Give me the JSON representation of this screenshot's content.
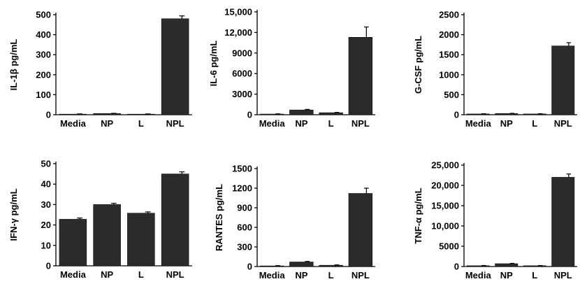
{
  "colors": {
    "bar": "#2b2b2b",
    "axis": "#000000",
    "background": "#ffffff"
  },
  "chart_data": [
    {
      "type": "bar",
      "ylabel": "IL-1β pg/mL",
      "categories": [
        "Media",
        "NP",
        "L",
        "NPL"
      ],
      "values": [
        3,
        6,
        3,
        480
      ],
      "errors": [
        1,
        1,
        1,
        14
      ],
      "ylim": [
        0,
        500
      ],
      "yticks": [
        0,
        100,
        200,
        300,
        400,
        500
      ],
      "ytick_labels": [
        "0",
        "100",
        "200",
        "300",
        "400",
        "500"
      ]
    },
    {
      "type": "bar",
      "ylabel": "IL-6 pg/mL",
      "categories": [
        "Media",
        "NP",
        "L",
        "NPL"
      ],
      "values": [
        100,
        700,
        300,
        11300
      ],
      "errors": [
        30,
        80,
        40,
        1500
      ],
      "ylim": [
        0,
        15000
      ],
      "yticks": [
        0,
        3000,
        6000,
        9000,
        12000,
        15000
      ],
      "ytick_labels": [
        "0",
        "3000",
        "6000",
        "9000",
        "12,000",
        "15,000"
      ]
    },
    {
      "type": "bar",
      "ylabel": "G-CSF pg/mL",
      "categories": [
        "Media",
        "NP",
        "L",
        "NPL"
      ],
      "values": [
        20,
        30,
        20,
        1720
      ],
      "errors": [
        5,
        5,
        5,
        80
      ],
      "ylim": [
        0,
        2500
      ],
      "yticks": [
        0,
        500,
        1000,
        1500,
        2000,
        2500
      ],
      "ytick_labels": [
        "0",
        "500",
        "1000",
        "1500",
        "2000",
        "2500"
      ]
    },
    {
      "type": "bar",
      "ylabel": "IFN-γ pg/mL",
      "categories": [
        "Media",
        "NP",
        "L",
        "NPL"
      ],
      "values": [
        22.8,
        30,
        25.8,
        45
      ],
      "errors": [
        0.6,
        0.6,
        0.6,
        1
      ],
      "ylim": [
        0,
        50
      ],
      "yticks": [
        0,
        10,
        20,
        30,
        40,
        50
      ],
      "ytick_labels": [
        "0",
        "10",
        "20",
        "30",
        "40",
        "50"
      ]
    },
    {
      "type": "bar",
      "ylabel": "RANTES pg/mL",
      "categories": [
        "Media",
        "NP",
        "L",
        "NPL"
      ],
      "values": [
        10,
        70,
        20,
        1120
      ],
      "errors": [
        4,
        8,
        5,
        80
      ],
      "ylim": [
        0,
        1500
      ],
      "yticks": [
        0,
        300,
        600,
        900,
        1200,
        1500
      ],
      "ytick_labels": [
        "0",
        "300",
        "600",
        "900",
        "1200",
        "1500"
      ]
    },
    {
      "type": "bar",
      "ylabel": "TNF-α pg/mL",
      "categories": [
        "Media",
        "NP",
        "L",
        "NPL"
      ],
      "values": [
        200,
        700,
        200,
        22000
      ],
      "errors": [
        50,
        80,
        50,
        800
      ],
      "ylim": [
        0,
        25000
      ],
      "yticks": [
        0,
        5000,
        10000,
        15000,
        20000,
        25000
      ],
      "ytick_labels": [
        "0",
        "5000",
        "10,000",
        "15,000",
        "20,000",
        "25,000"
      ]
    }
  ]
}
